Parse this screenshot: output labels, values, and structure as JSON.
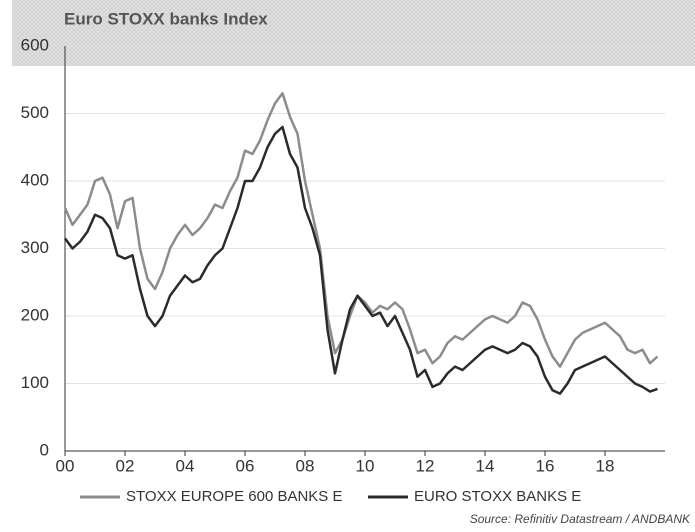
{
  "chart_data": {
    "type": "line",
    "title": "Euro STOXX banks Index",
    "source": "Source: Refinitiv Datastream / ANDBANK",
    "x": [
      2000,
      2000.25,
      2000.5,
      2000.75,
      2001,
      2001.25,
      2001.5,
      2001.75,
      2002,
      2002.25,
      2002.5,
      2002.75,
      2003,
      2003.25,
      2003.5,
      2003.75,
      2004,
      2004.25,
      2004.5,
      2004.75,
      2005,
      2005.25,
      2005.5,
      2005.75,
      2006,
      2006.25,
      2006.5,
      2006.75,
      2007,
      2007.25,
      2007.5,
      2007.75,
      2008,
      2008.25,
      2008.5,
      2008.75,
      2009,
      2009.25,
      2009.5,
      2009.75,
      2010,
      2010.25,
      2010.5,
      2010.75,
      2011,
      2011.25,
      2011.5,
      2011.75,
      2012,
      2012.25,
      2012.5,
      2012.75,
      2013,
      2013.25,
      2013.5,
      2013.75,
      2014,
      2014.25,
      2014.5,
      2014.75,
      2015,
      2015.25,
      2015.5,
      2015.75,
      2016,
      2016.25,
      2016.5,
      2016.75,
      2017,
      2017.25,
      2017.5,
      2017.75,
      2018,
      2018.25,
      2018.5,
      2018.75,
      2019,
      2019.25,
      2019.5,
      2019.75
    ],
    "series": [
      {
        "name": "STOXX EUROPE 600 BANKS E",
        "color": "#8c8c8c",
        "values": [
          360,
          335,
          350,
          365,
          400,
          405,
          380,
          330,
          370,
          375,
          300,
          255,
          240,
          265,
          300,
          320,
          335,
          320,
          330,
          345,
          365,
          360,
          385,
          405,
          445,
          440,
          460,
          490,
          515,
          530,
          495,
          470,
          400,
          350,
          300,
          200,
          145,
          165,
          200,
          230,
          220,
          205,
          215,
          210,
          220,
          210,
          180,
          145,
          150,
          130,
          140,
          160,
          170,
          165,
          175,
          185,
          195,
          200,
          195,
          190,
          200,
          220,
          215,
          195,
          165,
          140,
          125,
          145,
          165,
          175,
          180,
          185,
          190,
          180,
          170,
          150,
          145,
          150,
          130,
          140
        ]
      },
      {
        "name": "EURO STOXX BANKS E",
        "color": "#2b2b2b",
        "values": [
          315,
          300,
          310,
          325,
          350,
          345,
          330,
          290,
          285,
          290,
          240,
          200,
          185,
          200,
          230,
          245,
          260,
          250,
          255,
          275,
          290,
          300,
          330,
          360,
          400,
          400,
          420,
          450,
          470,
          480,
          440,
          420,
          360,
          330,
          290,
          180,
          115,
          165,
          210,
          230,
          215,
          200,
          205,
          185,
          200,
          175,
          150,
          110,
          120,
          95,
          100,
          115,
          125,
          120,
          130,
          140,
          150,
          155,
          150,
          145,
          150,
          160,
          155,
          140,
          110,
          90,
          85,
          100,
          120,
          125,
          130,
          135,
          140,
          130,
          120,
          110,
          100,
          95,
          88,
          92
        ]
      }
    ],
    "xlim": [
      2000,
      2020
    ],
    "xticks": [
      {
        "value": 2000,
        "label": "00"
      },
      {
        "value": 2002,
        "label": "02"
      },
      {
        "value": 2004,
        "label": "04"
      },
      {
        "value": 2006,
        "label": "06"
      },
      {
        "value": 2008,
        "label": "08"
      },
      {
        "value": 2010,
        "label": "10"
      },
      {
        "value": 2012,
        "label": "12"
      },
      {
        "value": 2014,
        "label": "14"
      },
      {
        "value": 2016,
        "label": "16"
      },
      {
        "value": 2018,
        "label": "18"
      }
    ],
    "ylim": [
      0,
      600
    ],
    "yticks": [
      0,
      100,
      200,
      300,
      400,
      500,
      600
    ],
    "grid": true
  }
}
